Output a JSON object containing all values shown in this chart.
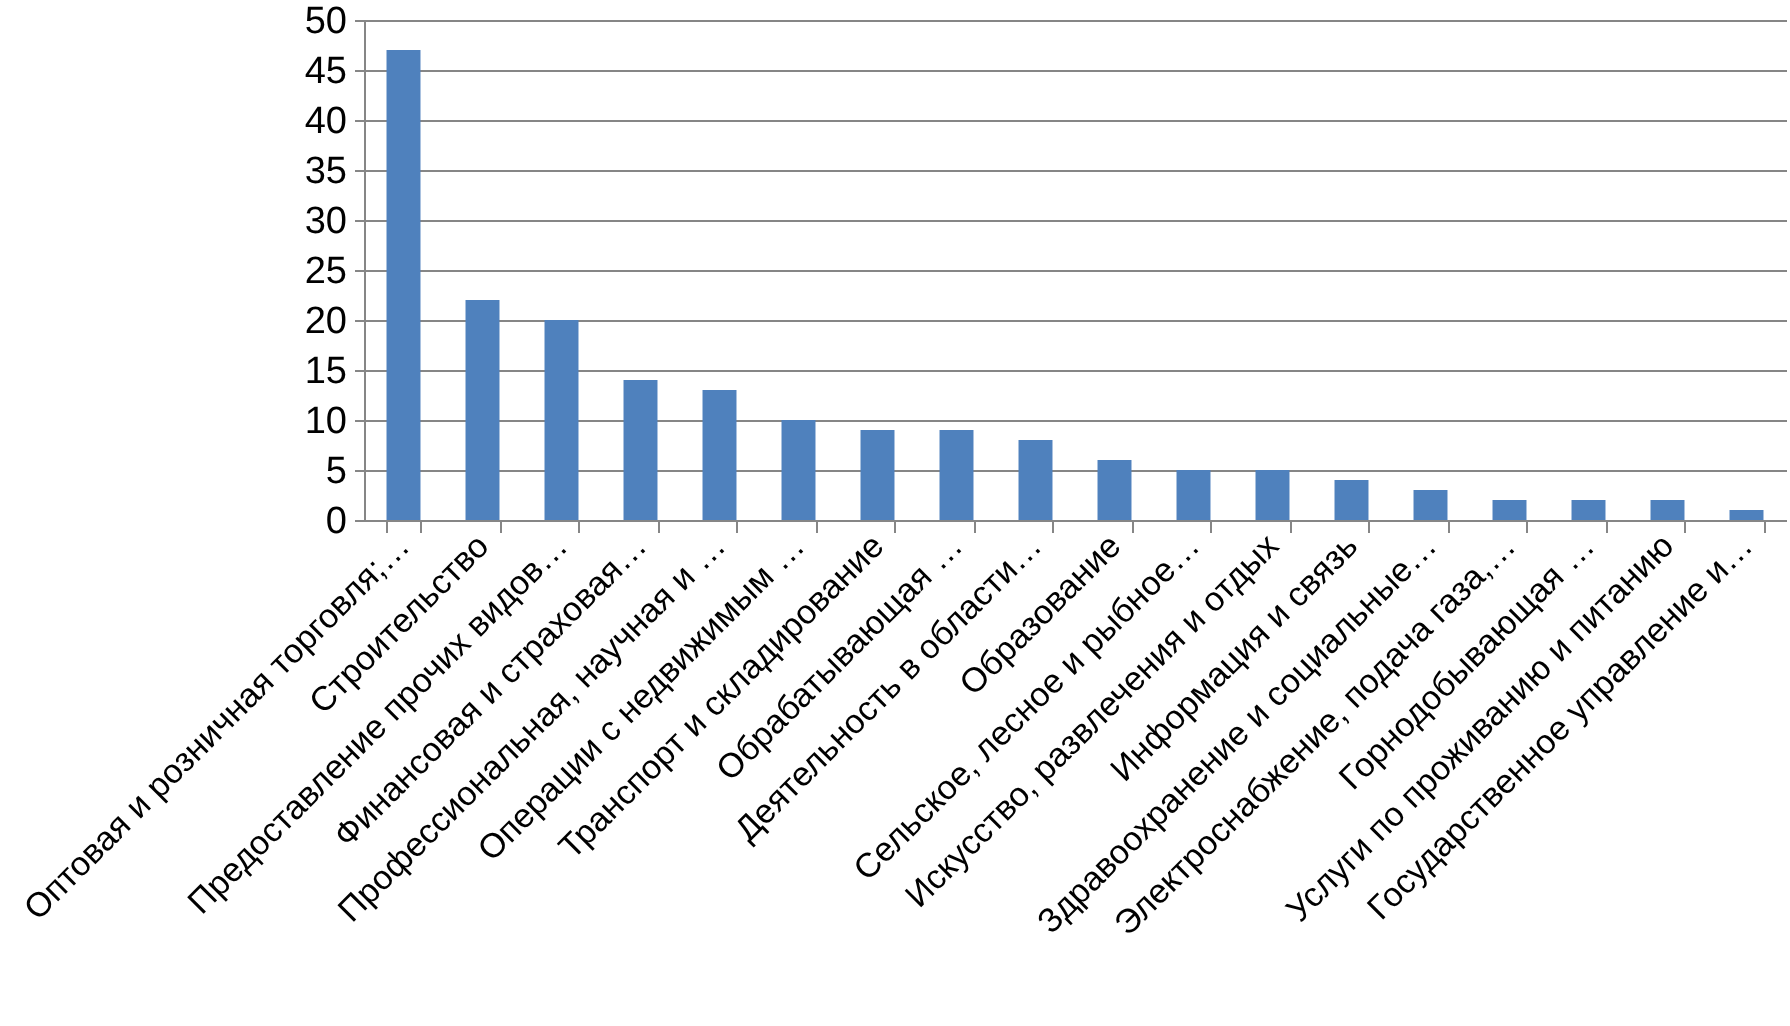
{
  "chart_data": {
    "type": "bar",
    "categories": [
      "Оптовая и розничная торговля;…",
      "Строительство",
      "Предоставление прочих видов…",
      "Финансовая и страховая…",
      "Профессиональная, научная и …",
      "Операции с недвижимым …",
      "Транспорт и складирование",
      "Обрабатывающая …",
      "Деятельность в области…",
      "Образование",
      "Сельское, лесное и рыбное…",
      "Искусство, развлечения и отдых",
      "Информация и связь",
      "Здравоохранение и социальные…",
      "Электроснабжение, подача газа,…",
      "Горнодобывающая …",
      "Услуги по проживанию и питанию",
      "Государственное управление и…"
    ],
    "values": [
      47,
      22,
      20,
      14,
      13,
      10,
      9,
      9,
      8,
      6,
      5,
      5,
      4,
      3,
      2,
      2,
      2,
      1
    ],
    "color": "#4f81bd",
    "ylim": [
      0,
      50
    ],
    "yticks": [
      0,
      5,
      10,
      15,
      20,
      25,
      30,
      35,
      40,
      45,
      50
    ],
    "grid": "y"
  }
}
